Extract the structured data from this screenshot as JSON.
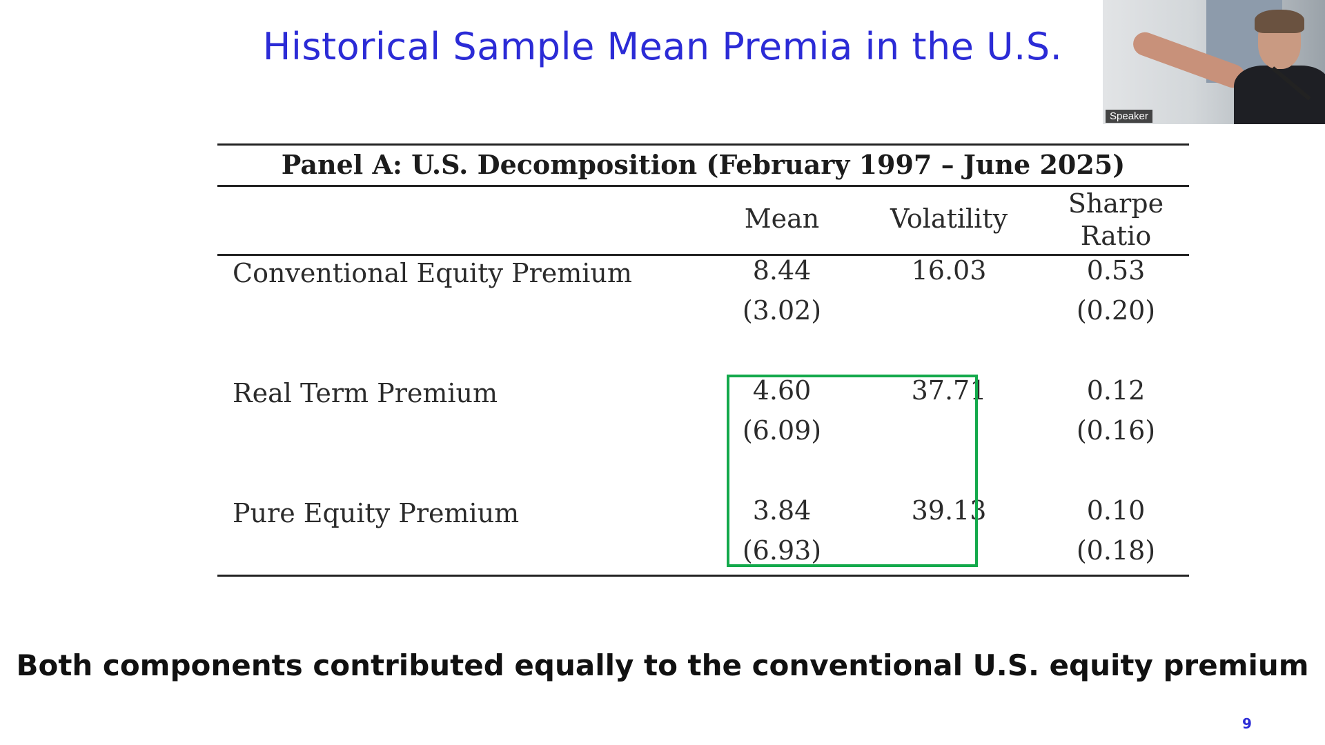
{
  "slide": {
    "title": "Historical Sample Mean Premia in the U.S.",
    "takeaway": "Both components contributed equally to the conventional U.S. equity premium",
    "page_number": "9"
  },
  "speaker": {
    "label": "Speaker"
  },
  "table": {
    "panel_title": "Panel A: U.S. Decomposition (February 1997 – June 2025)",
    "columns": {
      "mean": "Mean",
      "volatility": "Volatility",
      "sharpe_line1": "Sharpe",
      "sharpe_line2": "Ratio"
    },
    "rows": [
      {
        "label": "Conventional Equity Premium",
        "mean": "8.44",
        "mean_se": "(3.02)",
        "volatility": "16.03",
        "sharpe": "0.53",
        "sharpe_se": "(0.20)"
      },
      {
        "label": "Real Term Premium",
        "mean": "4.60",
        "mean_se": "(6.09)",
        "volatility": "37.71",
        "sharpe": "0.12",
        "sharpe_se": "(0.16)"
      },
      {
        "label": "Pure Equity Premium",
        "mean": "3.84",
        "mean_se": "(6.93)",
        "volatility": "39.13",
        "sharpe": "0.10",
        "sharpe_se": "(0.18)"
      }
    ],
    "highlight_color": "#13a94b"
  }
}
